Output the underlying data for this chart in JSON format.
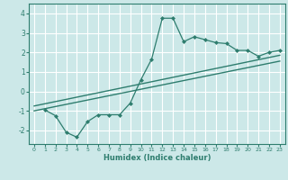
{
  "bg_color": "#cce8e8",
  "grid_color": "#ffffff",
  "line_color": "#2e7d6e",
  "xlabel": "Humidex (Indice chaleur)",
  "xlim": [
    -0.5,
    23.5
  ],
  "ylim": [
    -2.7,
    4.5
  ],
  "yticks": [
    -2,
    -1,
    0,
    1,
    2,
    3,
    4
  ],
  "xticks": [
    0,
    1,
    2,
    3,
    4,
    5,
    6,
    7,
    8,
    9,
    10,
    11,
    12,
    13,
    14,
    15,
    16,
    17,
    18,
    19,
    20,
    21,
    22,
    23
  ],
  "main_line_x": [
    1,
    2,
    3,
    4,
    5,
    6,
    7,
    8,
    9,
    10,
    11,
    12,
    13,
    14,
    15,
    16,
    17,
    18,
    19,
    20,
    21,
    22,
    23
  ],
  "main_line_y": [
    -0.95,
    -1.25,
    -2.1,
    -2.35,
    -1.55,
    -1.2,
    -1.2,
    -1.2,
    -0.6,
    0.6,
    1.65,
    3.75,
    3.75,
    2.55,
    2.8,
    2.65,
    2.5,
    2.45,
    2.1,
    2.1,
    1.8,
    2.0,
    2.1
  ],
  "line2_x": [
    0,
    23
  ],
  "line2_y": [
    -1.0,
    1.55
  ],
  "line3_x": [
    0,
    23
  ],
  "line3_y": [
    -0.75,
    1.85
  ]
}
